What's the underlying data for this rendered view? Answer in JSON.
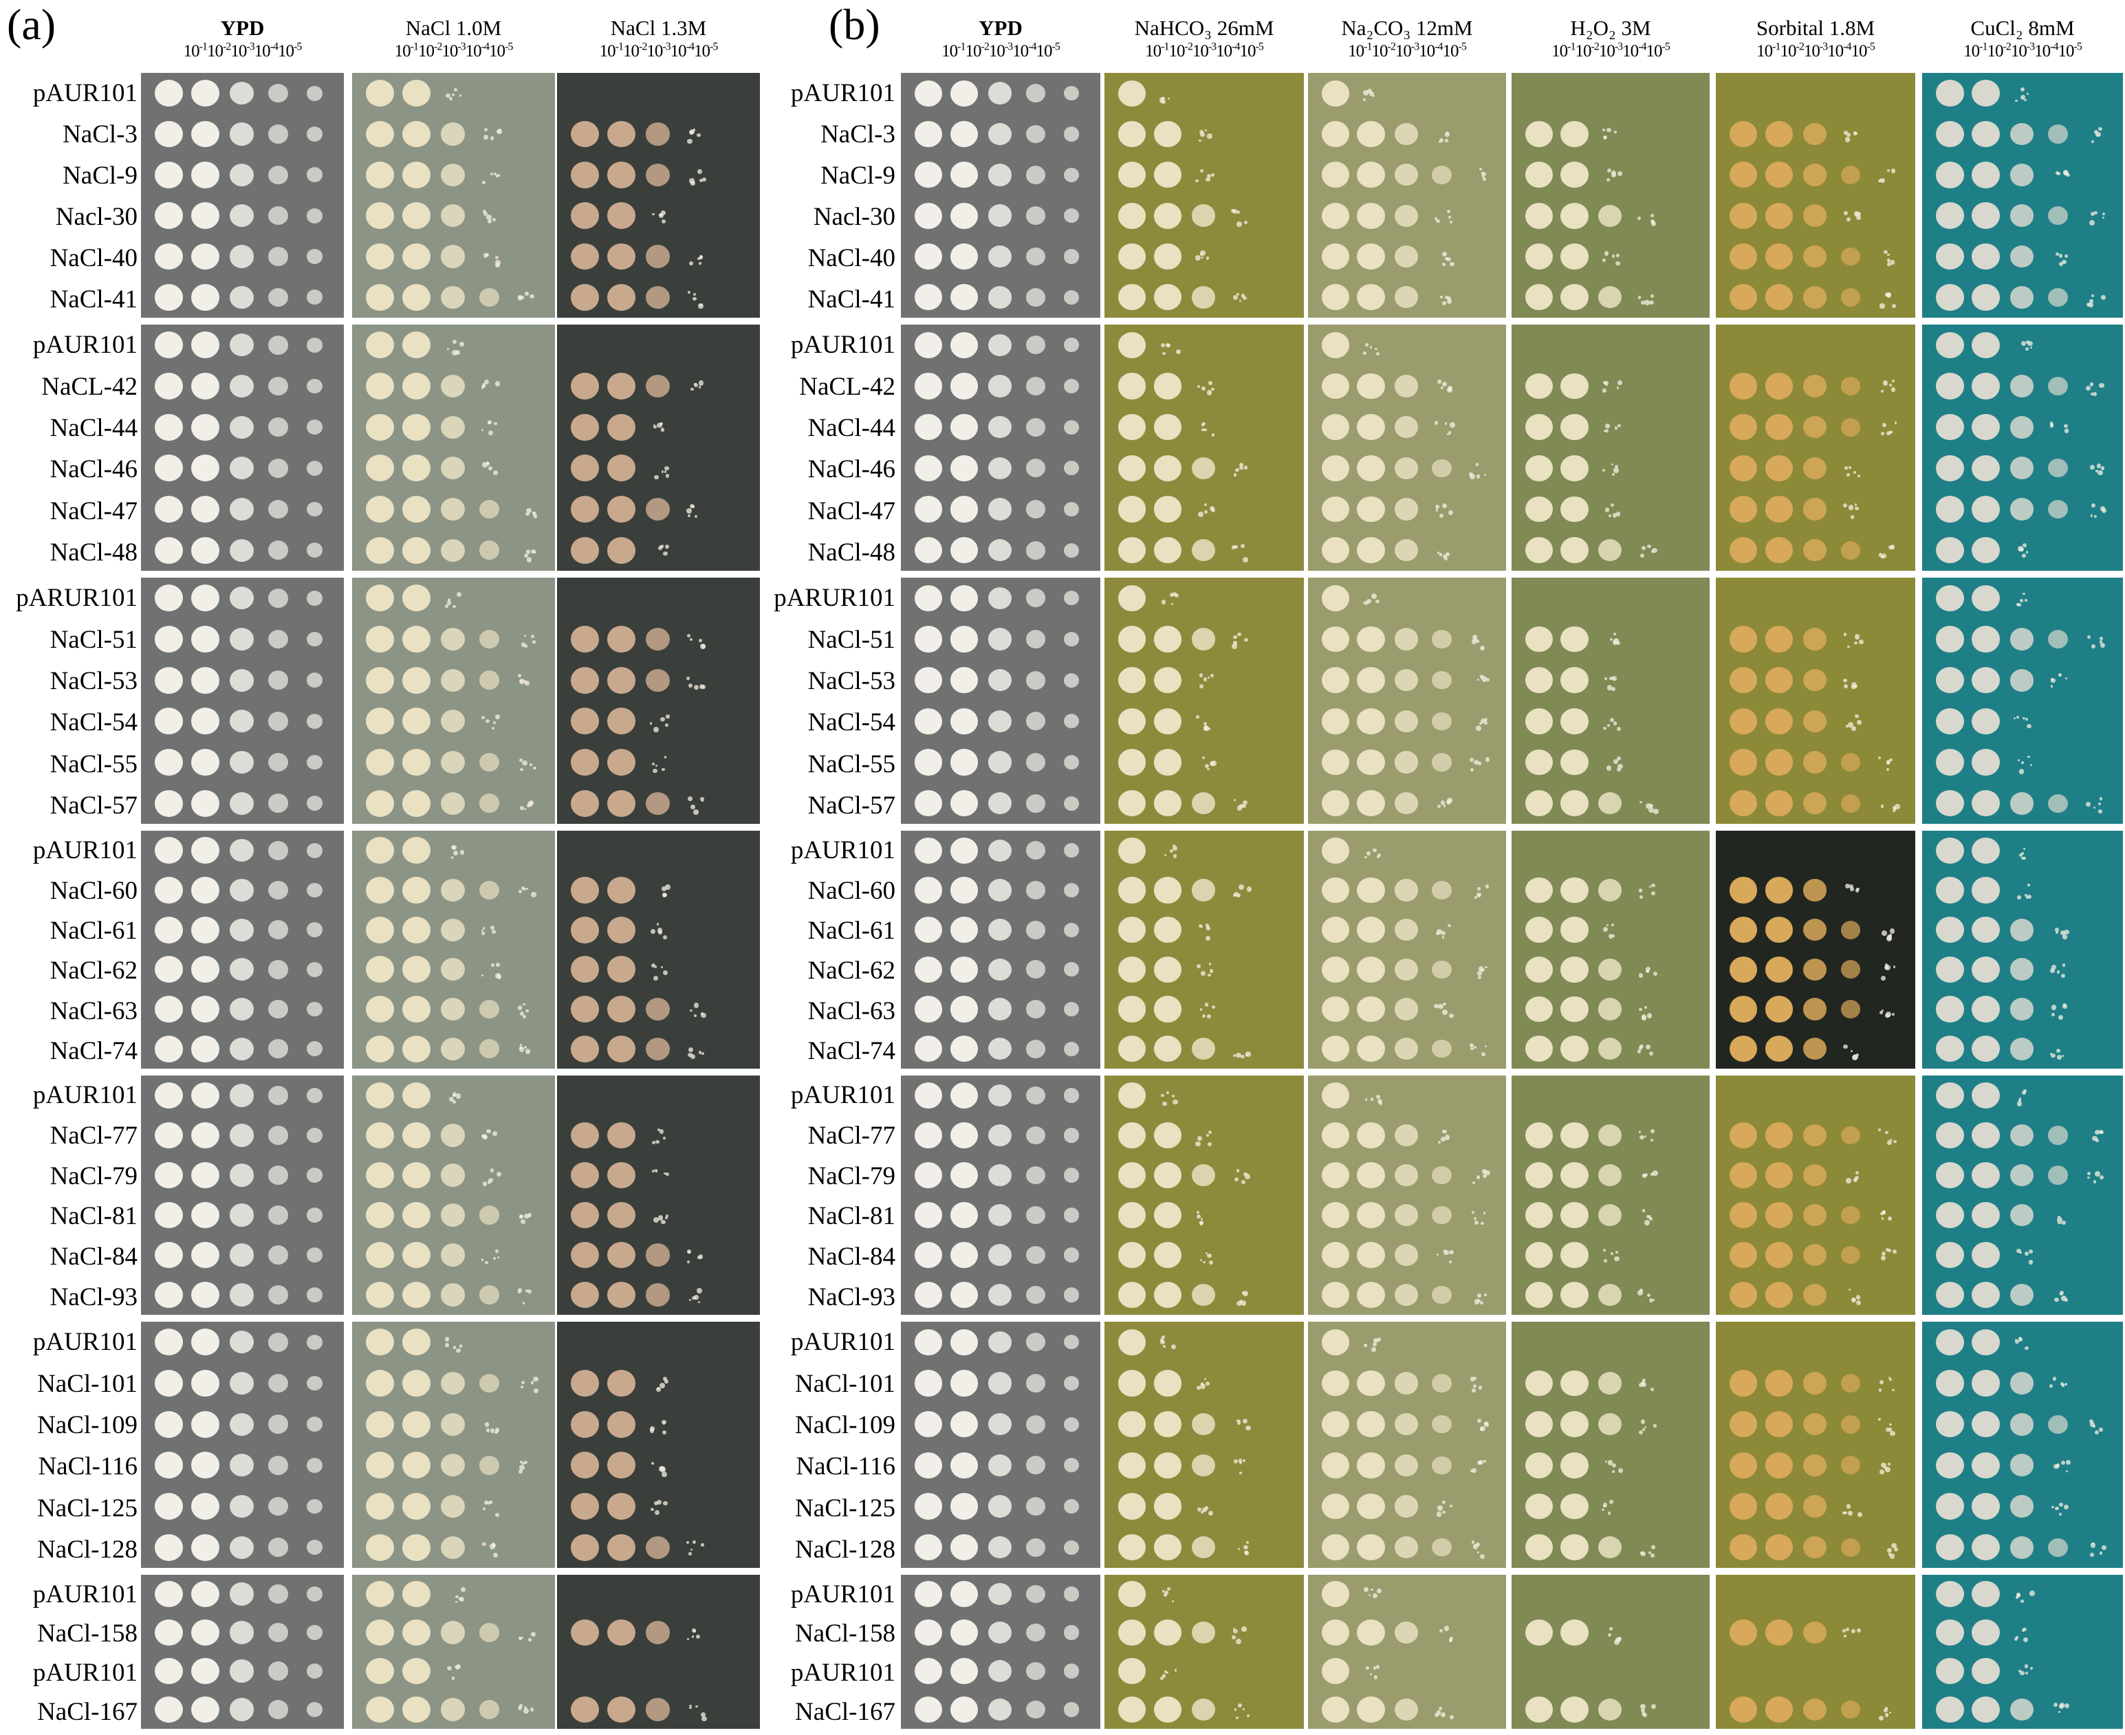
{
  "panel_labels": [
    "(a)",
    "(b)"
  ],
  "dilutions": [
    "10",
    "10",
    "10",
    "10",
    "10"
  ],
  "dilution_exponents": [
    "-1",
    "-2",
    "-3",
    "-4",
    "-5"
  ],
  "conditions_a": [
    {
      "label": "YPD",
      "bold": true
    },
    {
      "label": "NaCl 1.0M",
      "bold": false
    },
    {
      "label": "NaCl 1.3M",
      "bold": false
    }
  ],
  "conditions_b": [
    {
      "label": "YPD",
      "bold": true
    },
    {
      "label": "NaHCO₃ 26mM",
      "bold": false
    },
    {
      "label": "Na₂CO₃ 12mM",
      "bold": false
    },
    {
      "label": "H₂O₂ 3M",
      "bold": false
    },
    {
      "label": "Sorbital 1.8M",
      "bold": false
    },
    {
      "label": "CuCl₂ 8mM",
      "bold": false
    }
  ],
  "strain_groups": [
    [
      "pAUR101",
      "NaCl-3",
      "NaCl-9",
      "Nacl-30",
      "NaCl-40",
      "NaCl-41"
    ],
    [
      "pAUR101",
      "NaCL-42",
      "NaCl-44",
      "NaCl-46",
      "NaCl-47",
      "NaCl-48"
    ],
    [
      "pARUR101",
      "NaCl-51",
      "NaCl-53",
      "NaCl-54",
      "NaCl-55",
      "NaCl-57"
    ],
    [
      "pAUR101",
      "NaCl-60",
      "NaCl-61",
      "NaCl-62",
      "NaCl-63",
      "NaCl-74"
    ],
    [
      "pAUR101",
      "NaCl-77",
      "NaCl-79",
      "NaCl-81",
      "NaCl-84",
      "NaCl-93"
    ],
    [
      "pAUR101",
      "NaCl-101",
      "NaCl-109",
      "NaCl-116",
      "NaCl-125",
      "NaCl-128"
    ],
    [
      "pAUR101",
      "NaCl-158",
      "pAUR101",
      "NaCl-167"
    ]
  ],
  "plate_colors": {
    "ypd": "#6f7271",
    "nacl_1_0": "#8c9486",
    "nacl_1_3": "#3a3f3b",
    "nahco3": "#8e8a3c",
    "na2co3": "#9a9c6e",
    "h2o2": "#7f8a55",
    "sorbital": "#8c8a38",
    "sorbital_dark": "#222620",
    "cucl2": "#1f7f86"
  },
  "colony_colors": {
    "white": "#f2efe9",
    "cream": "#e9e1c2",
    "yellow": "#e2c98a",
    "orange": "#d8a95a",
    "pale": "#d8d8cf"
  }
}
